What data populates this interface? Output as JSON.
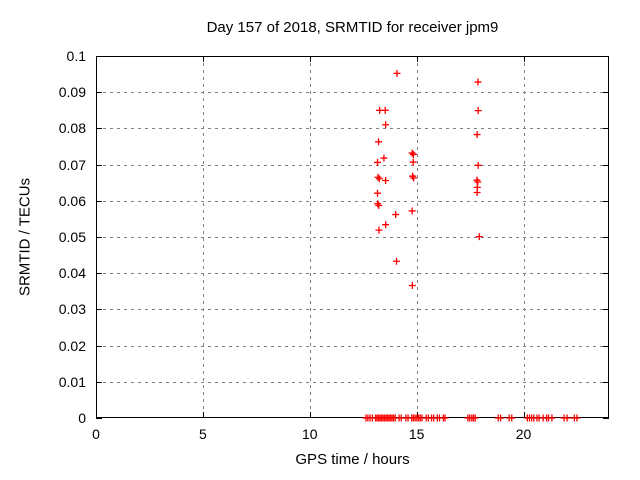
{
  "window": {
    "background": "#ffffff"
  },
  "chart_data": {
    "type": "scatter",
    "title": "Day 157 of 2018, SRMTID for receiver jpm9",
    "xlabel": "GPS time / hours",
    "ylabel": "SRMTID / TECUs",
    "xlim": [
      0,
      24
    ],
    "ylim": [
      0,
      0.1
    ],
    "xticks": [
      {
        "value": 0,
        "label": "0"
      },
      {
        "value": 5,
        "label": "5"
      },
      {
        "value": 10,
        "label": "10"
      },
      {
        "value": 15,
        "label": "15"
      },
      {
        "value": 20,
        "label": "20"
      }
    ],
    "yticks": [
      {
        "value": 0,
        "label": "0"
      },
      {
        "value": 0.01,
        "label": "0.01"
      },
      {
        "value": 0.02,
        "label": "0.02"
      },
      {
        "value": 0.03,
        "label": "0.03"
      },
      {
        "value": 0.04,
        "label": "0.04"
      },
      {
        "value": 0.05,
        "label": "0.05"
      },
      {
        "value": 0.06,
        "label": "0.06"
      },
      {
        "value": 0.07,
        "label": "0.07"
      },
      {
        "value": 0.08,
        "label": "0.08"
      },
      {
        "value": 0.09,
        "label": "0.09"
      },
      {
        "value": 0.1,
        "label": "0.1"
      }
    ],
    "grid": true,
    "legend": "none",
    "axis_color": "#000000",
    "grid_color": "#808080",
    "marker": {
      "shape": "plus",
      "color": "#ff0000",
      "size": 7
    },
    "series": [
      {
        "name": "SRMTID",
        "points": [
          [
            13.27,
            0.085
          ],
          [
            13.53,
            0.085
          ],
          [
            13.55,
            0.081
          ],
          [
            13.22,
            0.0763
          ],
          [
            13.47,
            0.0718
          ],
          [
            13.17,
            0.0706
          ],
          [
            13.19,
            0.0665
          ],
          [
            13.26,
            0.0661
          ],
          [
            13.55,
            0.0656
          ],
          [
            13.17,
            0.0621
          ],
          [
            13.18,
            0.0592
          ],
          [
            13.23,
            0.0587
          ],
          [
            13.55,
            0.0534
          ],
          [
            13.24,
            0.0519
          ],
          [
            14.08,
            0.0952
          ],
          [
            14.02,
            0.0562
          ],
          [
            14.06,
            0.0433
          ],
          [
            14.79,
            0.0732
          ],
          [
            14.85,
            0.0728
          ],
          [
            14.84,
            0.0707
          ],
          [
            14.81,
            0.0668
          ],
          [
            14.86,
            0.0663
          ],
          [
            14.79,
            0.0572
          ],
          [
            14.8,
            0.0366
          ],
          [
            17.87,
            0.0928
          ],
          [
            17.88,
            0.0849
          ],
          [
            17.83,
            0.0783
          ],
          [
            17.88,
            0.0698
          ],
          [
            17.82,
            0.0657
          ],
          [
            17.86,
            0.0652
          ],
          [
            17.84,
            0.0637
          ],
          [
            17.83,
            0.0623
          ],
          [
            17.93,
            0.0501
          ]
        ],
        "zero_band_x": [
          12.63,
          12.72,
          12.82,
          12.93,
          13.08,
          13.15,
          13.22,
          13.29,
          13.36,
          13.43,
          13.5,
          13.57,
          13.64,
          13.71,
          13.78,
          13.85,
          13.92,
          14.0,
          14.18,
          14.28,
          14.5,
          14.6,
          14.77,
          14.85,
          14.93,
          15.01,
          15.09,
          15.17,
          15.25,
          15.45,
          15.55,
          15.7,
          15.8,
          15.97,
          16.07,
          16.25,
          16.33,
          17.4,
          17.48,
          17.58,
          17.66,
          17.74,
          18.82,
          18.93,
          19.33,
          19.45,
          20.18,
          20.28,
          20.38,
          20.48,
          20.63,
          20.73,
          20.92,
          21.08,
          21.17,
          21.33,
          21.9,
          22.04,
          22.38,
          22.5
        ]
      }
    ]
  }
}
